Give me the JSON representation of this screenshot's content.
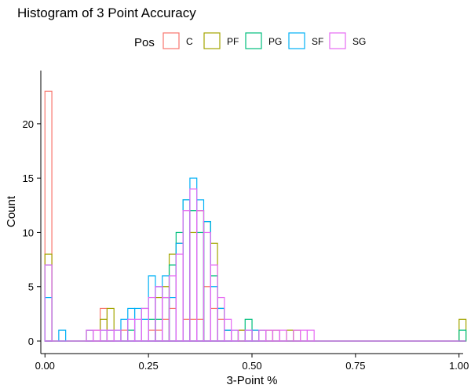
{
  "chart_data": {
    "type": "histogram",
    "title": "Histogram of 3 Point Accuracy",
    "xlabel": "3-Point %",
    "ylabel": "Count",
    "legend_title": "Pos",
    "legend_position": "top",
    "grid": false,
    "xlim": [
      -0.01,
      1.01
    ],
    "ylim": [
      0,
      23
    ],
    "x_ticks": [
      0,
      0.25,
      0.5,
      0.75,
      1
    ],
    "x_tick_labels": [
      "0.00",
      "0.25",
      "0.50",
      "0.75",
      "1.00"
    ],
    "y_ticks": [
      0,
      5,
      10,
      15,
      20
    ],
    "y_tick_labels": [
      "0",
      "5",
      "10",
      "15",
      "20"
    ],
    "bin_width": 0.01667,
    "series": [
      {
        "name": "C",
        "color": "#F8766D",
        "counts": {
          "0": 23,
          "7": 1,
          "8": 3,
          "9": 1,
          "11": 1,
          "15": 1,
          "16": 1,
          "17": 2,
          "18": 3,
          "20": 2,
          "21": 2,
          "22": 2,
          "23": 5,
          "24": 3,
          "25": 2,
          "26": 1,
          "28": 1,
          "30": 1
        }
      },
      {
        "name": "PF",
        "color": "#A3A500",
        "counts": {
          "0": 8,
          "6": 1,
          "8": 2,
          "9": 3,
          "16": 4,
          "17": 5,
          "18": 8,
          "19": 9,
          "21": 10,
          "22": 12,
          "23": 11,
          "24": 9,
          "25": 3,
          "28": 1,
          "32": 1,
          "33": 1,
          "35": 1,
          "36": 1,
          "60": 2
        }
      },
      {
        "name": "PG",
        "color": "#00BF7D",
        "counts": {
          "0": 7,
          "12": 1,
          "14": 3,
          "15": 2,
          "16": 2,
          "17": 4,
          "18": 7,
          "19": 10,
          "20": 13,
          "21": 12,
          "22": 10,
          "23": 11,
          "24": 6,
          "25": 3,
          "26": 1,
          "29": 2,
          "31": 1,
          "60": 1
        }
      },
      {
        "name": "SF",
        "color": "#00B0F6",
        "counts": {
          "0": 4,
          "2": 1,
          "6": 1,
          "8": 1,
          "9": 1,
          "10": 1,
          "11": 2,
          "12": 3,
          "13": 3,
          "14": 2,
          "15": 6,
          "16": 5,
          "17": 6,
          "18": 4,
          "19": 9,
          "20": 13,
          "21": 15,
          "22": 13,
          "23": 11,
          "24": 5,
          "25": 3,
          "26": 1,
          "27": 1,
          "29": 1,
          "30": 1
        }
      },
      {
        "name": "SG",
        "color": "#E76BF3",
        "counts": {
          "0": 7,
          "6": 1,
          "7": 1,
          "8": 1,
          "9": 1,
          "10": 1,
          "12": 2,
          "13": 2,
          "14": 3,
          "15": 4,
          "16": 5,
          "17": 4,
          "18": 6,
          "19": 8,
          "20": 12,
          "21": 14,
          "22": 12,
          "23": 10,
          "24": 7,
          "25": 4,
          "26": 2,
          "27": 1,
          "29": 1,
          "31": 1,
          "32": 1,
          "33": 1,
          "34": 1,
          "36": 1,
          "37": 1,
          "38": 1
        }
      }
    ]
  }
}
